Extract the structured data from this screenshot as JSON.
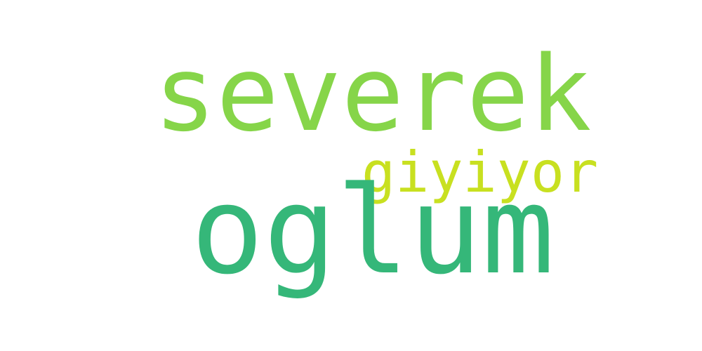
{
  "words": [
    {
      "text": "severek",
      "color": "#86d549"
    },
    {
      "text": "giyiyor",
      "color": "#c8e020"
    },
    {
      "text": "oglum",
      "color": "#35b779"
    }
  ]
}
